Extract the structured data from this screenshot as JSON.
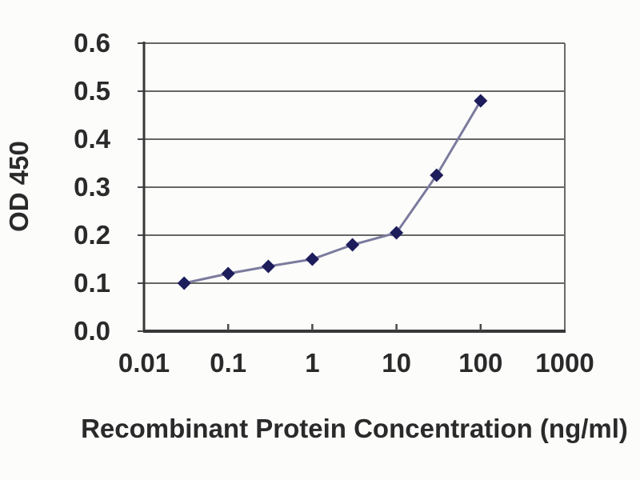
{
  "chart_data": {
    "type": "line",
    "title": "",
    "xlabel": "Recombinant Protein Concentration (ng/ml)",
    "ylabel": "OD 450",
    "x_scale": "log",
    "xlim": [
      0.01,
      1000
    ],
    "ylim": [
      0.0,
      0.6
    ],
    "x_ticks": [
      0.1,
      1,
      10,
      100
    ],
    "x_tick_labels": [
      "0.01",
      "0.1",
      "1",
      "10",
      "100",
      "1000"
    ],
    "x_tick_label_values": [
      0.01,
      0.1,
      1,
      10,
      100,
      1000
    ],
    "y_ticks": [
      0.0,
      0.1,
      0.2,
      0.3,
      0.4,
      0.5,
      0.6
    ],
    "y_tick_labels": [
      "0.0",
      "0.1",
      "0.2",
      "0.3",
      "0.4",
      "0.5",
      "0.6"
    ],
    "grid": "horizontal",
    "legend": "none",
    "marker": "diamond",
    "series": [
      {
        "name": "OD 450",
        "x": [
          0.03,
          0.1,
          0.3,
          1,
          3,
          10,
          30,
          100
        ],
        "y": [
          0.1,
          0.12,
          0.135,
          0.15,
          0.18,
          0.205,
          0.325,
          0.48
        ]
      }
    ],
    "colors": {
      "background": "#fcfcfb",
      "gridline": "#666666",
      "axis": "#383838",
      "right_border": "#6a6a6a",
      "tick": "#4a4a4a",
      "line": "#7b7b9e",
      "marker": "#1d1d5c",
      "text": "#2a2a2a"
    }
  }
}
